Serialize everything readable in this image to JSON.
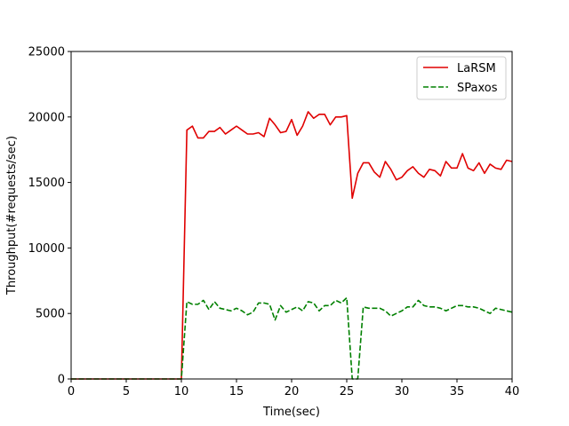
{
  "chart_data": {
    "type": "line",
    "xlabel": "Time(sec)",
    "ylabel": "Throughput(#requests/sec)",
    "xlim": [
      0,
      40
    ],
    "ylim": [
      0,
      25000
    ],
    "xticks": [
      0,
      5,
      10,
      15,
      20,
      25,
      30,
      35,
      40
    ],
    "yticks": [
      0,
      5000,
      10000,
      15000,
      20000,
      25000
    ],
    "grid": false,
    "legend_position": "top-right",
    "series": [
      {
        "name": "LaRSM",
        "color": "#e00000",
        "style": "solid",
        "x": [
          0,
          10,
          10.5,
          11,
          11.5,
          12,
          12.5,
          13,
          13.5,
          14,
          14.5,
          15,
          15.5,
          16,
          16.5,
          17,
          17.5,
          18,
          18.5,
          19,
          19.5,
          20,
          20.5,
          21,
          21.5,
          22,
          22.5,
          23,
          23.5,
          24,
          24.5,
          25,
          25.5,
          26,
          26.5,
          27,
          27.5,
          28,
          28.5,
          29,
          29.5,
          30,
          30.5,
          31,
          31.5,
          32,
          32.5,
          33,
          33.5,
          34,
          34.5,
          35,
          35.5,
          36,
          36.5,
          37,
          37.5,
          38,
          38.5,
          39,
          39.5,
          40
        ],
        "y": [
          0,
          0,
          19000,
          19300,
          18400,
          18400,
          18900,
          18900,
          19200,
          18700,
          19000,
          19300,
          19000,
          18700,
          18700,
          18800,
          18500,
          19900,
          19400,
          18800,
          18900,
          19800,
          18600,
          19300,
          20400,
          19900,
          20200,
          20200,
          19400,
          20000,
          20000,
          20100,
          13800,
          15700,
          16500,
          16500,
          15800,
          15400,
          16600,
          16000,
          15200,
          15400,
          15900,
          16200,
          15700,
          15400,
          16000,
          15900,
          15500,
          16600,
          16100,
          16100,
          17200,
          16100,
          15900,
          16500,
          15700,
          16400,
          16100,
          16000,
          16700,
          16600
        ]
      },
      {
        "name": "SPaxos",
        "color": "#008000",
        "style": "dashed",
        "x": [
          0,
          10,
          10.5,
          11,
          11.5,
          12,
          12.5,
          13,
          13.5,
          14,
          14.5,
          15,
          15.5,
          16,
          16.5,
          17,
          17.5,
          18,
          18.5,
          19,
          19.5,
          20,
          20.5,
          21,
          21.5,
          22,
          22.5,
          23,
          23.5,
          24,
          24.5,
          25,
          25.5,
          26,
          26.5,
          27,
          27.5,
          28,
          28.5,
          29,
          29.5,
          30,
          30.5,
          31,
          31.5,
          32,
          32.5,
          33,
          33.5,
          34,
          34.5,
          35,
          35.5,
          36,
          36.5,
          37,
          37.5,
          38,
          38.5,
          39,
          39.5,
          40
        ],
        "y": [
          0,
          0,
          5900,
          5700,
          5700,
          6000,
          5300,
          5900,
          5400,
          5300,
          5200,
          5400,
          5200,
          4900,
          5100,
          5800,
          5800,
          5700,
          4500,
          5600,
          5100,
          5300,
          5500,
          5200,
          5900,
          5800,
          5200,
          5600,
          5600,
          6000,
          5800,
          6200,
          0,
          0,
          5500,
          5400,
          5400,
          5400,
          5200,
          4800,
          5000,
          5200,
          5500,
          5500,
          6000,
          5600,
          5500,
          5500,
          5400,
          5200,
          5400,
          5600,
          5600,
          5500,
          5500,
          5400,
          5200,
          5000,
          5400,
          5300,
          5200,
          5100
        ]
      }
    ]
  }
}
